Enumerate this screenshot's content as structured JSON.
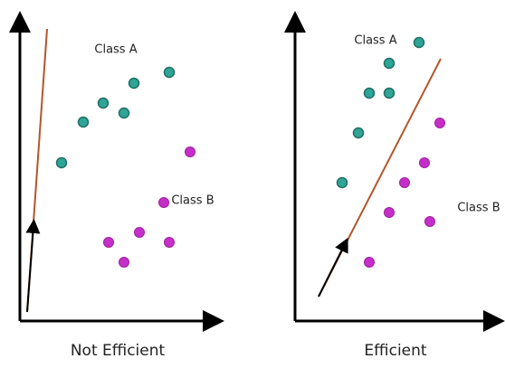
{
  "panels": [
    {
      "class_a": "Class A",
      "class_b": "Class B",
      "caption": "Not Efficient"
    },
    {
      "class_a": "Class A",
      "class_b": "Class B",
      "caption": "Efficient"
    }
  ]
}
